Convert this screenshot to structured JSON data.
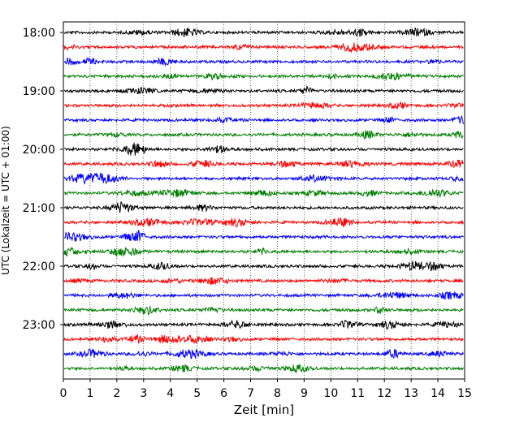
{
  "chart_data": {
    "type": "line",
    "subtype": "helicorder-seismogram",
    "title": "",
    "xlabel": "Zeit  [min]",
    "ylabel": "UTC (Lokalzeit = UTC + 01:00)",
    "xlim": [
      0,
      15
    ],
    "x_ticks": [
      "0",
      "1",
      "2",
      "3",
      "4",
      "5",
      "6",
      "7",
      "8",
      "9",
      "10",
      "11",
      "12",
      "13",
      "14",
      "15"
    ],
    "y_tick_labels": [
      "18:00",
      "19:00",
      "20:00",
      "21:00",
      "22:00",
      "23:00"
    ],
    "grid": "vertical-dotted",
    "legend": "none",
    "trace_colors": [
      "#000000",
      "#ff0000",
      "#0000ff",
      "#007f00"
    ],
    "trace_interval_minutes": 15,
    "trace_start_times": [
      "18:00",
      "18:15",
      "18:30",
      "18:45",
      "19:00",
      "19:15",
      "19:30",
      "19:45",
      "20:00",
      "20:15",
      "20:30",
      "20:45",
      "21:00",
      "21:15",
      "21:30",
      "21:45",
      "22:00",
      "22:15",
      "22:30",
      "22:45",
      "23:00",
      "23:15",
      "23:30",
      "23:45"
    ]
  }
}
